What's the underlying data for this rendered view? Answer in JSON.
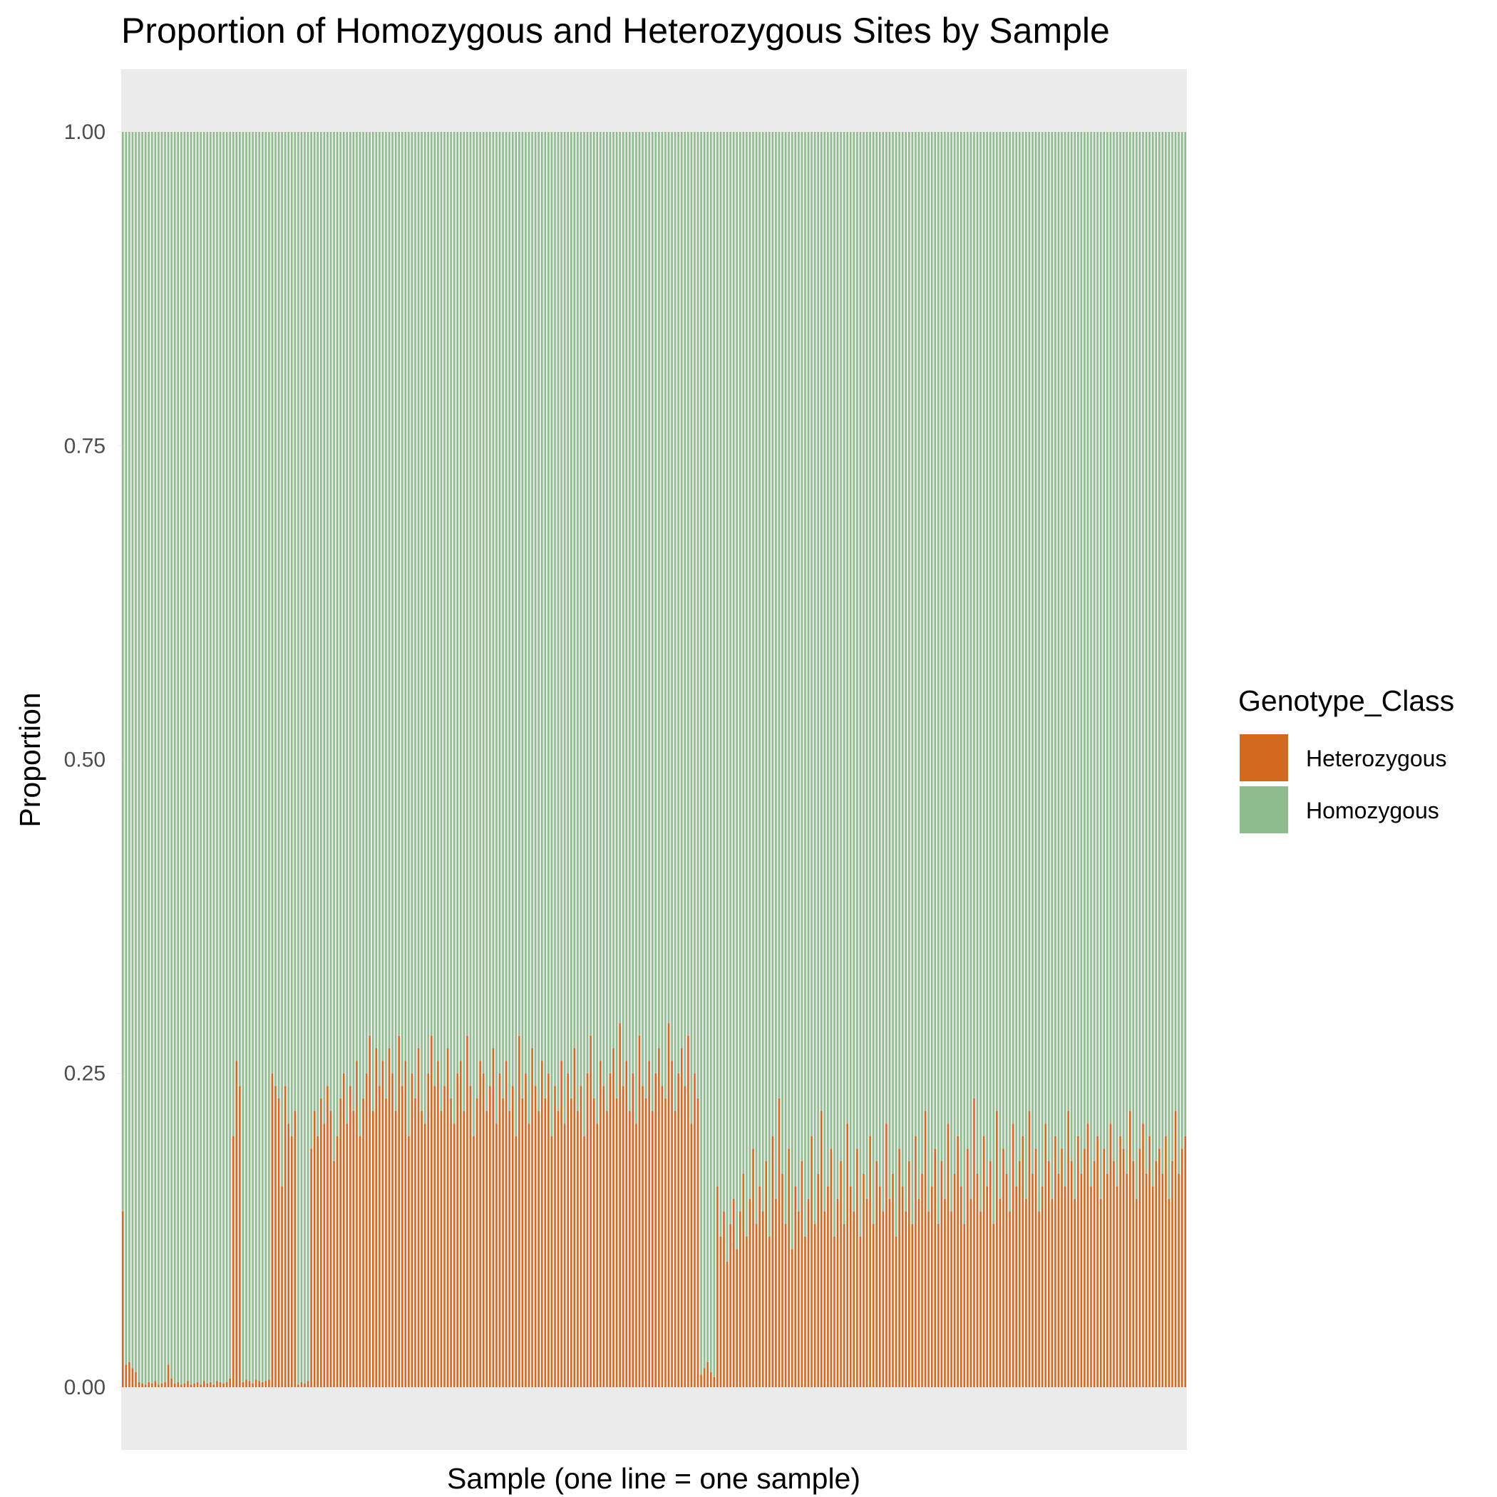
{
  "chart_data": {
    "type": "bar",
    "stacked": true,
    "title": "Proportion of Homozygous and Heterozygous Sites by Sample",
    "xlabel": "Sample (one line = one sample)",
    "ylabel": "Proportion",
    "ylim": [
      -0.05,
      1.05
    ],
    "y_ticks": [
      0,
      0.25,
      0.5,
      0.75,
      1
    ],
    "y_tick_labels": [
      "0.00",
      "0.25",
      "0.50",
      "0.75",
      "1.00"
    ],
    "grid": false,
    "panel_background": "#ebebeb",
    "legend": {
      "title": "Genotype_Class",
      "position": "right",
      "entries": [
        {
          "name": "Heterozygous",
          "color": "#D2691E"
        },
        {
          "name": "Homozygous",
          "color": "#8FBC8F"
        }
      ]
    },
    "series": [
      {
        "name": "Heterozygous",
        "color": "#D2691E",
        "values": [
          0.14,
          0.018,
          0.02,
          0.015,
          0.012,
          0.004,
          0.003,
          0.002,
          0.004,
          0.003,
          0.005,
          0.002,
          0.003,
          0.004,
          0.018,
          0.007,
          0.003,
          0.004,
          0.002,
          0.003,
          0.005,
          0.002,
          0.003,
          0.004,
          0.002,
          0.005,
          0.003,
          0.004,
          0.002,
          0.005,
          0.004,
          0.003,
          0.004,
          0.007,
          0.2,
          0.26,
          0.24,
          0.004,
          0.006,
          0.005,
          0.003,
          0.006,
          0.005,
          0.004,
          0.005,
          0.006,
          0.25,
          0.24,
          0.23,
          0.16,
          0.24,
          0.21,
          0.2,
          0.22,
          0.002,
          0.004,
          0.003,
          0.005,
          0.19,
          0.22,
          0.2,
          0.23,
          0.21,
          0.24,
          0.22,
          0.18,
          0.2,
          0.23,
          0.25,
          0.21,
          0.24,
          0.22,
          0.26,
          0.2,
          0.23,
          0.25,
          0.28,
          0.22,
          0.27,
          0.24,
          0.26,
          0.23,
          0.27,
          0.25,
          0.22,
          0.28,
          0.24,
          0.26,
          0.2,
          0.25,
          0.23,
          0.27,
          0.22,
          0.21,
          0.25,
          0.28,
          0.24,
          0.26,
          0.22,
          0.24,
          0.27,
          0.23,
          0.21,
          0.25,
          0.26,
          0.22,
          0.28,
          0.24,
          0.2,
          0.23,
          0.26,
          0.25,
          0.22,
          0.24,
          0.27,
          0.21,
          0.25,
          0.23,
          0.26,
          0.22,
          0.24,
          0.2,
          0.28,
          0.23,
          0.25,
          0.21,
          0.27,
          0.24,
          0.22,
          0.26,
          0.23,
          0.25,
          0.2,
          0.24,
          0.22,
          0.26,
          0.21,
          0.25,
          0.23,
          0.27,
          0.22,
          0.24,
          0.2,
          0.25,
          0.28,
          0.23,
          0.21,
          0.26,
          0.24,
          0.22,
          0.25,
          0.27,
          0.23,
          0.29,
          0.24,
          0.26,
          0.22,
          0.25,
          0.21,
          0.28,
          0.24,
          0.23,
          0.26,
          0.22,
          0.25,
          0.27,
          0.24,
          0.23,
          0.29,
          0.26,
          0.22,
          0.25,
          0.27,
          0.24,
          0.28,
          0.21,
          0.25,
          0.23,
          0.01,
          0.015,
          0.02,
          0.012,
          0.008,
          0.16,
          0.12,
          0.14,
          0.1,
          0.13,
          0.15,
          0.11,
          0.14,
          0.17,
          0.12,
          0.15,
          0.19,
          0.13,
          0.16,
          0.14,
          0.18,
          0.12,
          0.2,
          0.15,
          0.23,
          0.17,
          0.13,
          0.19,
          0.11,
          0.16,
          0.14,
          0.18,
          0.12,
          0.15,
          0.2,
          0.13,
          0.17,
          0.22,
          0.14,
          0.16,
          0.19,
          0.12,
          0.15,
          0.18,
          0.13,
          0.21,
          0.16,
          0.14,
          0.19,
          0.12,
          0.17,
          0.15,
          0.2,
          0.13,
          0.18,
          0.16,
          0.14,
          0.21,
          0.15,
          0.17,
          0.12,
          0.19,
          0.16,
          0.14,
          0.18,
          0.13,
          0.2,
          0.15,
          0.17,
          0.22,
          0.14,
          0.16,
          0.19,
          0.13,
          0.18,
          0.15,
          0.21,
          0.14,
          0.17,
          0.2,
          0.16,
          0.13,
          0.19,
          0.15,
          0.23,
          0.17,
          0.14,
          0.2,
          0.16,
          0.18,
          0.13,
          0.22,
          0.15,
          0.19,
          0.17,
          0.14,
          0.21,
          0.16,
          0.18,
          0.2,
          0.15,
          0.22,
          0.17,
          0.19,
          0.14,
          0.16,
          0.21,
          0.18,
          0.15,
          0.2,
          0.17,
          0.19,
          0.16,
          0.22,
          0.18,
          0.15,
          0.2,
          0.17,
          0.19,
          0.21,
          0.16,
          0.18,
          0.2,
          0.15,
          0.19,
          0.17,
          0.21,
          0.18,
          0.16,
          0.2,
          0.19,
          0.17,
          0.22,
          0.18,
          0.15,
          0.19,
          0.21,
          0.17,
          0.2,
          0.16,
          0.18,
          0.19,
          0.17,
          0.2,
          0.15,
          0.18,
          0.22,
          0.17,
          0.19,
          0.2
        ]
      },
      {
        "name": "Homozygous",
        "color": "#8FBC8F",
        "values": [
          0.86,
          0.982,
          0.98,
          0.985,
          0.988,
          0.996,
          0.997,
          0.998,
          0.996,
          0.997,
          0.995,
          0.998,
          0.997,
          0.996,
          0.982,
          0.993,
          0.997,
          0.996,
          0.998,
          0.997,
          0.995,
          0.998,
          0.997,
          0.996,
          0.998,
          0.995,
          0.997,
          0.996,
          0.998,
          0.995,
          0.996,
          0.997,
          0.996,
          0.993,
          0.8,
          0.74,
          0.76,
          0.996,
          0.994,
          0.995,
          0.997,
          0.994,
          0.995,
          0.996,
          0.995,
          0.994,
          0.75,
          0.76,
          0.77,
          0.84,
          0.76,
          0.79,
          0.8,
          0.78,
          0.998,
          0.996,
          0.997,
          0.995,
          0.81,
          0.78,
          0.8,
          0.77,
          0.79,
          0.76,
          0.78,
          0.82,
          0.8,
          0.77,
          0.75,
          0.79,
          0.76,
          0.78,
          0.74,
          0.8,
          0.77,
          0.75,
          0.72,
          0.78,
          0.73,
          0.76,
          0.74,
          0.77,
          0.73,
          0.75,
          0.78,
          0.72,
          0.76,
          0.74,
          0.8,
          0.75,
          0.77,
          0.73,
          0.78,
          0.79,
          0.75,
          0.72,
          0.76,
          0.74,
          0.78,
          0.76,
          0.73,
          0.77,
          0.79,
          0.75,
          0.74,
          0.78,
          0.72,
          0.76,
          0.8,
          0.77,
          0.74,
          0.75,
          0.78,
          0.76,
          0.73,
          0.79,
          0.75,
          0.77,
          0.74,
          0.78,
          0.76,
          0.8,
          0.72,
          0.77,
          0.75,
          0.79,
          0.73,
          0.76,
          0.78,
          0.74,
          0.77,
          0.75,
          0.8,
          0.76,
          0.78,
          0.74,
          0.79,
          0.75,
          0.77,
          0.73,
          0.78,
          0.76,
          0.8,
          0.75,
          0.72,
          0.77,
          0.79,
          0.74,
          0.76,
          0.78,
          0.75,
          0.73,
          0.77,
          0.71,
          0.76,
          0.74,
          0.78,
          0.75,
          0.79,
          0.72,
          0.76,
          0.77,
          0.74,
          0.78,
          0.75,
          0.73,
          0.76,
          0.77,
          0.71,
          0.74,
          0.78,
          0.75,
          0.73,
          0.76,
          0.72,
          0.79,
          0.75,
          0.77,
          0.99,
          0.985,
          0.98,
          0.988,
          0.992,
          0.84,
          0.88,
          0.86,
          0.9,
          0.87,
          0.85,
          0.89,
          0.86,
          0.83,
          0.88,
          0.85,
          0.81,
          0.87,
          0.84,
          0.86,
          0.82,
          0.88,
          0.8,
          0.85,
          0.77,
          0.83,
          0.87,
          0.81,
          0.89,
          0.84,
          0.86,
          0.82,
          0.88,
          0.85,
          0.8,
          0.87,
          0.83,
          0.78,
          0.86,
          0.84,
          0.81,
          0.88,
          0.85,
          0.82,
          0.87,
          0.79,
          0.84,
          0.86,
          0.81,
          0.88,
          0.83,
          0.85,
          0.8,
          0.87,
          0.82,
          0.84,
          0.86,
          0.79,
          0.85,
          0.83,
          0.88,
          0.81,
          0.84,
          0.86,
          0.82,
          0.87,
          0.8,
          0.85,
          0.83,
          0.78,
          0.86,
          0.84,
          0.81,
          0.87,
          0.82,
          0.85,
          0.79,
          0.86,
          0.83,
          0.8,
          0.84,
          0.87,
          0.81,
          0.85,
          0.77,
          0.83,
          0.86,
          0.8,
          0.84,
          0.82,
          0.87,
          0.78,
          0.85,
          0.81,
          0.83,
          0.86,
          0.79,
          0.84,
          0.82,
          0.8,
          0.85,
          0.78,
          0.83,
          0.81,
          0.86,
          0.84,
          0.79,
          0.82,
          0.85,
          0.8,
          0.83,
          0.81,
          0.84,
          0.78,
          0.82,
          0.85,
          0.8,
          0.83,
          0.81,
          0.79,
          0.84,
          0.82,
          0.8,
          0.85,
          0.81,
          0.83,
          0.79,
          0.82,
          0.84,
          0.8,
          0.81,
          0.83,
          0.78,
          0.82,
          0.85,
          0.81,
          0.79,
          0.83,
          0.8,
          0.84,
          0.82,
          0.81,
          0.83,
          0.8,
          0.85,
          0.82,
          0.78,
          0.83,
          0.81,
          0.8
        ]
      }
    ]
  }
}
